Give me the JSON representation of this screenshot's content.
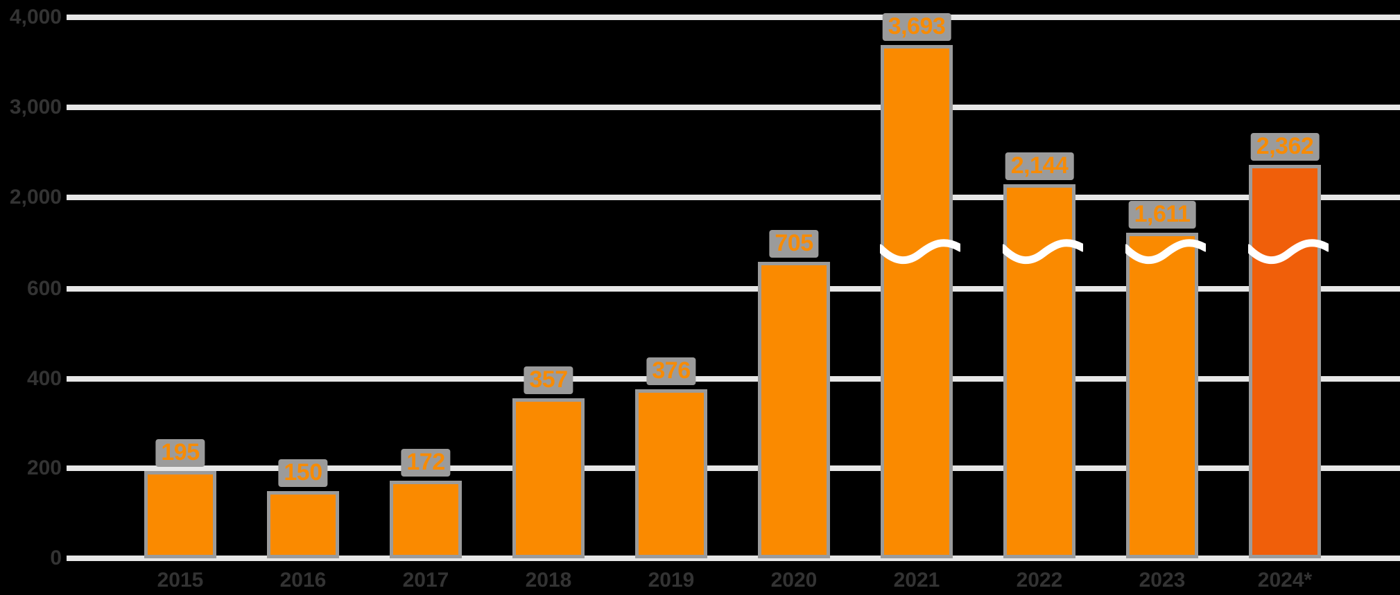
{
  "chart_data": {
    "type": "bar",
    "title": "",
    "categories": [
      "2015",
      "2016",
      "2017",
      "2018",
      "2019",
      "2020",
      "2021",
      "2022",
      "2023",
      "2024*"
    ],
    "values": [
      195,
      150,
      172,
      357,
      376,
      705,
      3693,
      2144,
      1611,
      2362
    ],
    "value_labels": [
      "195",
      "150",
      "172",
      "357",
      "376",
      "705",
      "3,693",
      "2,144",
      "1,611",
      "2,362"
    ],
    "broken_bars": [
      false,
      false,
      false,
      false,
      false,
      false,
      true,
      true,
      true,
      true
    ],
    "highlight_index": 9,
    "axis_break": true,
    "y_axis": {
      "ticks_below_break": [
        0,
        200,
        400,
        600
      ],
      "tick_labels_below_break": [
        "0",
        "200",
        "400",
        "600"
      ],
      "ticks_above_break": [
        2000,
        3000,
        4000
      ],
      "tick_labels_above_break": [
        "2,000",
        "3,000",
        "4,000"
      ],
      "range_below_break": [
        0,
        700
      ],
      "range_above_break": [
        1500,
        4200
      ]
    },
    "xlabel": "",
    "ylabel": "",
    "grid": "horizontal",
    "legend": "none",
    "colors": {
      "background": "#000000",
      "bar": "#FA8A00",
      "bar_highlight": "#F05F0A",
      "bar_outline": "#9B9B9B",
      "value_label_text": "#F78B05",
      "value_label_halo": "#9B9B9B",
      "gridline": "#E7E7E7",
      "axis_text": "#333333",
      "break_wave": "#FFFFFF"
    }
  }
}
